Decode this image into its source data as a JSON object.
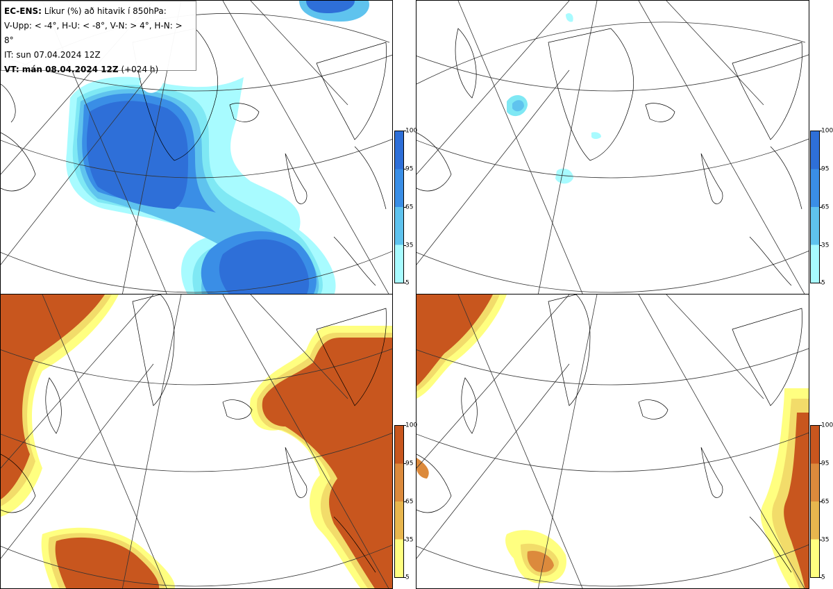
{
  "header": {
    "model_label": "EC-ENS:",
    "title_text": "Líkur (%) að hitavik í 850hPa:",
    "thresholds": "V-Upp: < -4°, H-U: < -8°, V-N: > 4°, H-N: > 8°",
    "init_time": "IT: sun 07.04.2024 12Z",
    "valid_label": "VT: mán 08.04.2024 12Z",
    "lead_time": "(+024 h)"
  },
  "colorbar_cold": {
    "ticks": [
      "100",
      "95",
      "65",
      "35",
      "5"
    ],
    "colors": [
      "#2e6fd8",
      "#3a8ee6",
      "#5fc3ee",
      "#7fe8f4",
      "#a8fbff"
    ]
  },
  "colorbar_warm": {
    "ticks": [
      "100",
      "95",
      "65",
      "35",
      "5"
    ],
    "colors": [
      "#c8561e",
      "#dc8a3c",
      "#e8b64e",
      "#f2dc6a",
      "#ffff80"
    ]
  },
  "panels": [
    {
      "id": "V-Upp",
      "fill": "cold"
    },
    {
      "id": "H-U",
      "fill": "cold"
    },
    {
      "id": "V-N",
      "fill": "warm"
    },
    {
      "id": "H-N",
      "fill": "warm"
    }
  ]
}
